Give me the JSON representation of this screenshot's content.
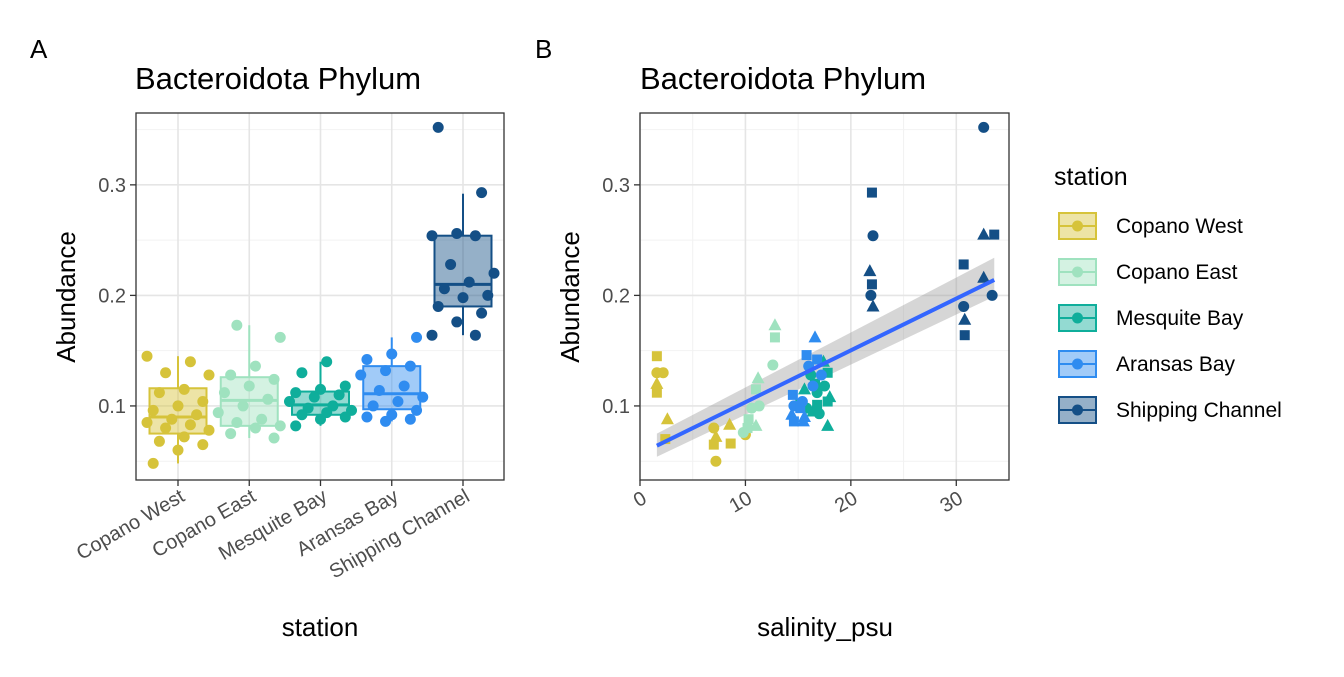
{
  "figure": {
    "panel_a_tag": "A",
    "panel_b_tag": "B"
  },
  "legend": {
    "title": "station",
    "items": [
      {
        "label": "Copano West",
        "color": "#d6c33a"
      },
      {
        "label": "Copano East",
        "color": "#9fe2bf"
      },
      {
        "label": "Mesquite Bay",
        "color": "#0fae9b"
      },
      {
        "label": "Aransas Bay",
        "color": "#2f8cf0"
      },
      {
        "label": "Shipping Channel",
        "color": "#144f86"
      }
    ]
  },
  "chart_data": [
    {
      "type": "box",
      "panel": "A",
      "title": "Bacteroidota Phylum",
      "xlabel": "station",
      "ylabel": "Abundance",
      "ylim": [
        0.033,
        0.365
      ],
      "yticks": [
        "0.1",
        "0.2",
        "0.3"
      ],
      "grid": true,
      "categories": [
        "Copano West",
        "Copano East",
        "Mesquite Bay",
        "Aransas Bay",
        "Shipping Channel"
      ],
      "boxes": [
        {
          "q1": 0.075,
          "median": 0.09,
          "q3": 0.116,
          "whisker_low": 0.048,
          "whisker_high": 0.145
        },
        {
          "q1": 0.082,
          "median": 0.105,
          "q3": 0.126,
          "whisker_low": 0.071,
          "whisker_high": 0.173
        },
        {
          "q1": 0.092,
          "median": 0.101,
          "q3": 0.113,
          "whisker_low": 0.082,
          "whisker_high": 0.14
        },
        {
          "q1": 0.097,
          "median": 0.111,
          "q3": 0.136,
          "whisker_low": 0.086,
          "whisker_high": 0.162
        },
        {
          "q1": 0.19,
          "median": 0.21,
          "q3": 0.254,
          "whisker_low": 0.164,
          "whisker_high": 0.292
        }
      ],
      "points": [
        [
          0.145,
          0.14,
          0.13,
          0.128,
          0.115,
          0.112,
          0.104,
          0.1,
          0.096,
          0.092,
          0.088,
          0.085,
          0.083,
          0.08,
          0.078,
          0.072,
          0.068,
          0.065,
          0.06,
          0.048
        ],
        [
          0.173,
          0.162,
          0.136,
          0.128,
          0.124,
          0.118,
          0.112,
          0.106,
          0.1,
          0.094,
          0.088,
          0.085,
          0.082,
          0.08,
          0.075,
          0.071
        ],
        [
          0.14,
          0.13,
          0.118,
          0.115,
          0.112,
          0.11,
          0.108,
          0.104,
          0.1,
          0.098,
          0.096,
          0.094,
          0.092,
          0.09,
          0.088,
          0.082
        ],
        [
          0.162,
          0.147,
          0.142,
          0.136,
          0.132,
          0.128,
          0.118,
          0.114,
          0.108,
          0.104,
          0.1,
          0.096,
          0.092,
          0.09,
          0.088,
          0.086
        ],
        [
          0.352,
          0.293,
          0.256,
          0.254,
          0.254,
          0.228,
          0.22,
          0.212,
          0.206,
          0.2,
          0.198,
          0.19,
          0.184,
          0.176,
          0.164,
          0.164
        ]
      ]
    },
    {
      "type": "scatter",
      "panel": "B",
      "title": "Bacteroidota Phylum",
      "xlabel": "salinity_psu",
      "ylabel": "Abundance",
      "xlim": [
        0,
        35
      ],
      "ylim": [
        0.033,
        0.365
      ],
      "xticks": [
        "0",
        "10",
        "20",
        "30"
      ],
      "yticks": [
        "0.1",
        "0.2",
        "0.3"
      ],
      "grid": true,
      "series": [
        {
          "shapes": [
            "square",
            "circle",
            "triangle"
          ],
          "points": [
            [
              1.6,
              0.145
            ],
            [
              1.6,
              0.13
            ],
            [
              1.6,
              0.12
            ],
            [
              1.6,
              0.112
            ],
            [
              2.2,
              0.13
            ],
            [
              2.6,
              0.088
            ],
            [
              2.4,
              0.07
            ],
            [
              7.0,
              0.08
            ],
            [
              7.2,
              0.072
            ],
            [
              7.0,
              0.065
            ],
            [
              7.2,
              0.05
            ],
            [
              8.5,
              0.083
            ],
            [
              8.6,
              0.066
            ],
            [
              10.0,
              0.074
            ]
          ]
        },
        {
          "shapes": [
            "square",
            "circle",
            "triangle"
          ],
          "points": [
            [
              10.3,
              0.088
            ],
            [
              10.6,
              0.098
            ],
            [
              11.2,
              0.125
            ],
            [
              11.0,
              0.115
            ],
            [
              11.3,
              0.1
            ],
            [
              12.8,
              0.173
            ],
            [
              12.8,
              0.162
            ],
            [
              12.6,
              0.137
            ],
            [
              11.0,
              0.082
            ],
            [
              10.2,
              0.08
            ],
            [
              9.8,
              0.076
            ]
          ]
        },
        {
          "shapes": [
            "square",
            "circle",
            "triangle"
          ],
          "points": [
            [
              15.2,
              0.102
            ],
            [
              15.8,
              0.098
            ],
            [
              16.4,
              0.095
            ],
            [
              16.6,
              0.12
            ],
            [
              16.8,
              0.112
            ],
            [
              17.4,
              0.14
            ],
            [
              17.8,
              0.13
            ],
            [
              17.5,
              0.118
            ],
            [
              18.0,
              0.108
            ],
            [
              17.8,
              0.104
            ],
            [
              17.0,
              0.093
            ],
            [
              17.8,
              0.082
            ],
            [
              16.8,
              0.101
            ],
            [
              16.2,
              0.128
            ],
            [
              15.6,
              0.115
            ]
          ]
        },
        {
          "shapes": [
            "square",
            "circle",
            "triangle"
          ],
          "points": [
            [
              14.5,
              0.11
            ],
            [
              14.6,
              0.1
            ],
            [
              14.4,
              0.092
            ],
            [
              15.2,
              0.098
            ],
            [
              15.4,
              0.104
            ],
            [
              15.6,
              0.09
            ],
            [
              15.8,
              0.146
            ],
            [
              16.0,
              0.136
            ],
            [
              16.6,
              0.162
            ],
            [
              16.8,
              0.142
            ],
            [
              17.2,
              0.128
            ],
            [
              15.5,
              0.086
            ],
            [
              14.6,
              0.086
            ],
            [
              16.4,
              0.118
            ]
          ]
        },
        {
          "shapes": [
            "square",
            "circle",
            "triangle"
          ],
          "points": [
            [
              22.0,
              0.293
            ],
            [
              22.1,
              0.254
            ],
            [
              21.8,
              0.222
            ],
            [
              22.0,
              0.21
            ],
            [
              21.9,
              0.2
            ],
            [
              22.1,
              0.19
            ],
            [
              30.7,
              0.228
            ],
            [
              30.7,
              0.19
            ],
            [
              30.8,
              0.178
            ],
            [
              30.8,
              0.164
            ],
            [
              32.6,
              0.352
            ],
            [
              32.6,
              0.255
            ],
            [
              33.6,
              0.255
            ],
            [
              33.4,
              0.2
            ],
            [
              32.6,
              0.216
            ]
          ]
        }
      ],
      "trend": {
        "x": [
          1.6,
          33.6
        ],
        "y": [
          0.064,
          0.214
        ],
        "band_low": [
          0.054,
          0.199
        ],
        "band_high": [
          0.075,
          0.234
        ]
      }
    }
  ]
}
